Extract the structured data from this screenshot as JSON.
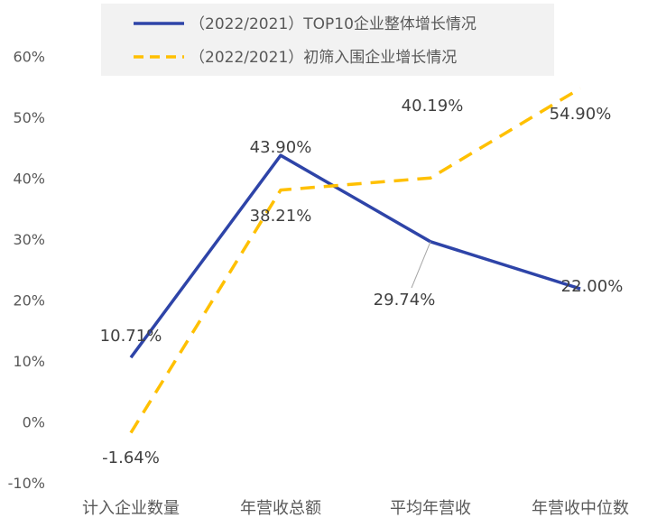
{
  "chart_data": {
    "type": "line",
    "categories": [
      "计入企业数量",
      "年营收总额",
      "平均年营收",
      "年营收中位数"
    ],
    "ylim": [
      -10,
      60
    ],
    "yticks": [
      "-10%",
      "0%",
      "10%",
      "20%",
      "30%",
      "40%",
      "50%",
      "60%"
    ],
    "ytick_values": [
      -10,
      0,
      10,
      20,
      30,
      40,
      50,
      60
    ],
    "grid": false,
    "legend_position": "top",
    "series": [
      {
        "name": "（2022/2021）TOP10企业整体增长情况",
        "values": [
          10.71,
          43.9,
          29.74,
          22.0
        ],
        "labels": [
          "10.71%",
          "43.90%",
          "29.74%",
          "22.00%"
        ],
        "color": "#2E44A8",
        "style": "solid"
      },
      {
        "name": "（2022/2021）初筛入围企业增长情况",
        "values": [
          -1.64,
          38.21,
          40.19,
          54.9
        ],
        "labels": [
          "-1.64%",
          "38.21%",
          "40.19%",
          "54.90%"
        ],
        "color": "#FFC000",
        "style": "dashed"
      }
    ]
  }
}
